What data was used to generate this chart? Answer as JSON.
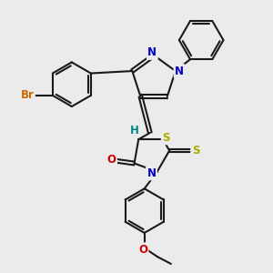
{
  "bg_color": "#ebebeb",
  "bond_color": "#1a1a1a",
  "bond_width": 1.5,
  "dbo": 0.055,
  "atom_colors": {
    "Br": "#cc6600",
    "N": "#0000cc",
    "O": "#cc0000",
    "S": "#aaaa00",
    "H": "#008888"
  },
  "fs": 8.5
}
